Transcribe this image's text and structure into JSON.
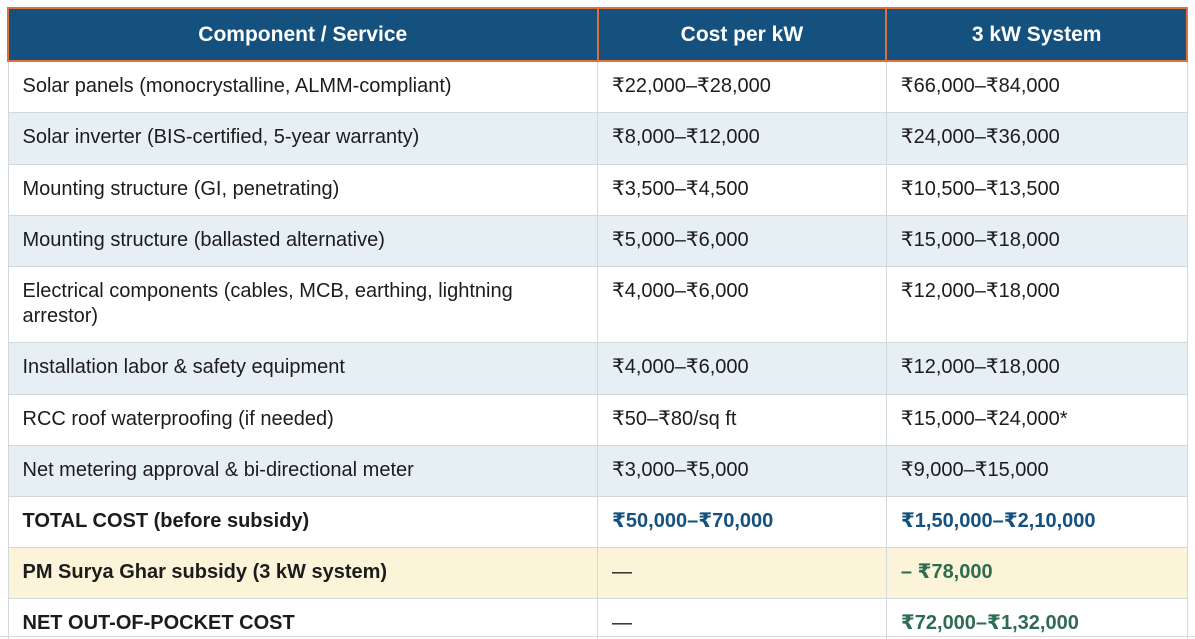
{
  "table": {
    "columns": [
      {
        "label": "Component / Service"
      },
      {
        "label": "Cost per kW"
      },
      {
        "label": "3 kW System"
      }
    ],
    "rows": [
      {
        "style": "normal",
        "component": "Solar panels (monocrystalline, ALMM-compliant)",
        "cost_per_kw": "₹22,000–₹28,000",
        "system_3kw": "₹66,000–₹84,000"
      },
      {
        "style": "alt",
        "component": "Solar inverter (BIS-certified, 5-year warranty)",
        "cost_per_kw": "₹8,000–₹12,000",
        "system_3kw": "₹24,000–₹36,000"
      },
      {
        "style": "normal",
        "component": "Mounting structure (GI, penetrating)",
        "cost_per_kw": "₹3,500–₹4,500",
        "system_3kw": "₹10,500–₹13,500"
      },
      {
        "style": "alt",
        "component": "Mounting structure (ballasted alternative)",
        "cost_per_kw": "₹5,000–₹6,000",
        "system_3kw": "₹15,000–₹18,000"
      },
      {
        "style": "normal",
        "component": "Electrical components (cables, MCB, earthing, lightning arrestor)",
        "cost_per_kw": "₹4,000–₹6,000",
        "system_3kw": "₹12,000–₹18,000"
      },
      {
        "style": "alt",
        "component": "Installation labor & safety equipment",
        "cost_per_kw": "₹4,000–₹6,000",
        "system_3kw": "₹12,000–₹18,000"
      },
      {
        "style": "normal",
        "component": "RCC roof waterproofing (if needed)",
        "cost_per_kw": "₹50–₹80/sq ft",
        "system_3kw": "₹15,000–₹24,000*"
      },
      {
        "style": "alt",
        "component": "Net metering approval & bi-directional meter",
        "cost_per_kw": "₹3,000–₹5,000",
        "system_3kw": "₹9,000–₹15,000"
      },
      {
        "style": "total",
        "component": "TOTAL COST (before subsidy)",
        "cost_per_kw": "₹50,000–₹70,000",
        "system_3kw": "₹1,50,000–₹2,10,000"
      },
      {
        "style": "subsidy",
        "component": "PM Surya Ghar subsidy (3 kW system)",
        "cost_per_kw": "—",
        "system_3kw": "– ₹78,000"
      },
      {
        "style": "net",
        "component": "NET OUT-OF-POCKET COST",
        "cost_per_kw": "—",
        "system_3kw": "₹72,000–₹1,32,000"
      }
    ]
  },
  "colors": {
    "header_bg": "#15517f",
    "header_text": "#ffffff",
    "header_border": "#e0703a",
    "row_alt_bg": "#e6eff4",
    "subsidy_row_bg": "#fbf4d9",
    "total_value_text": "#15517f",
    "savings_value_text": "#2f6b50",
    "cell_border": "#d2d8dc",
    "body_text": "#1c1c1c"
  }
}
